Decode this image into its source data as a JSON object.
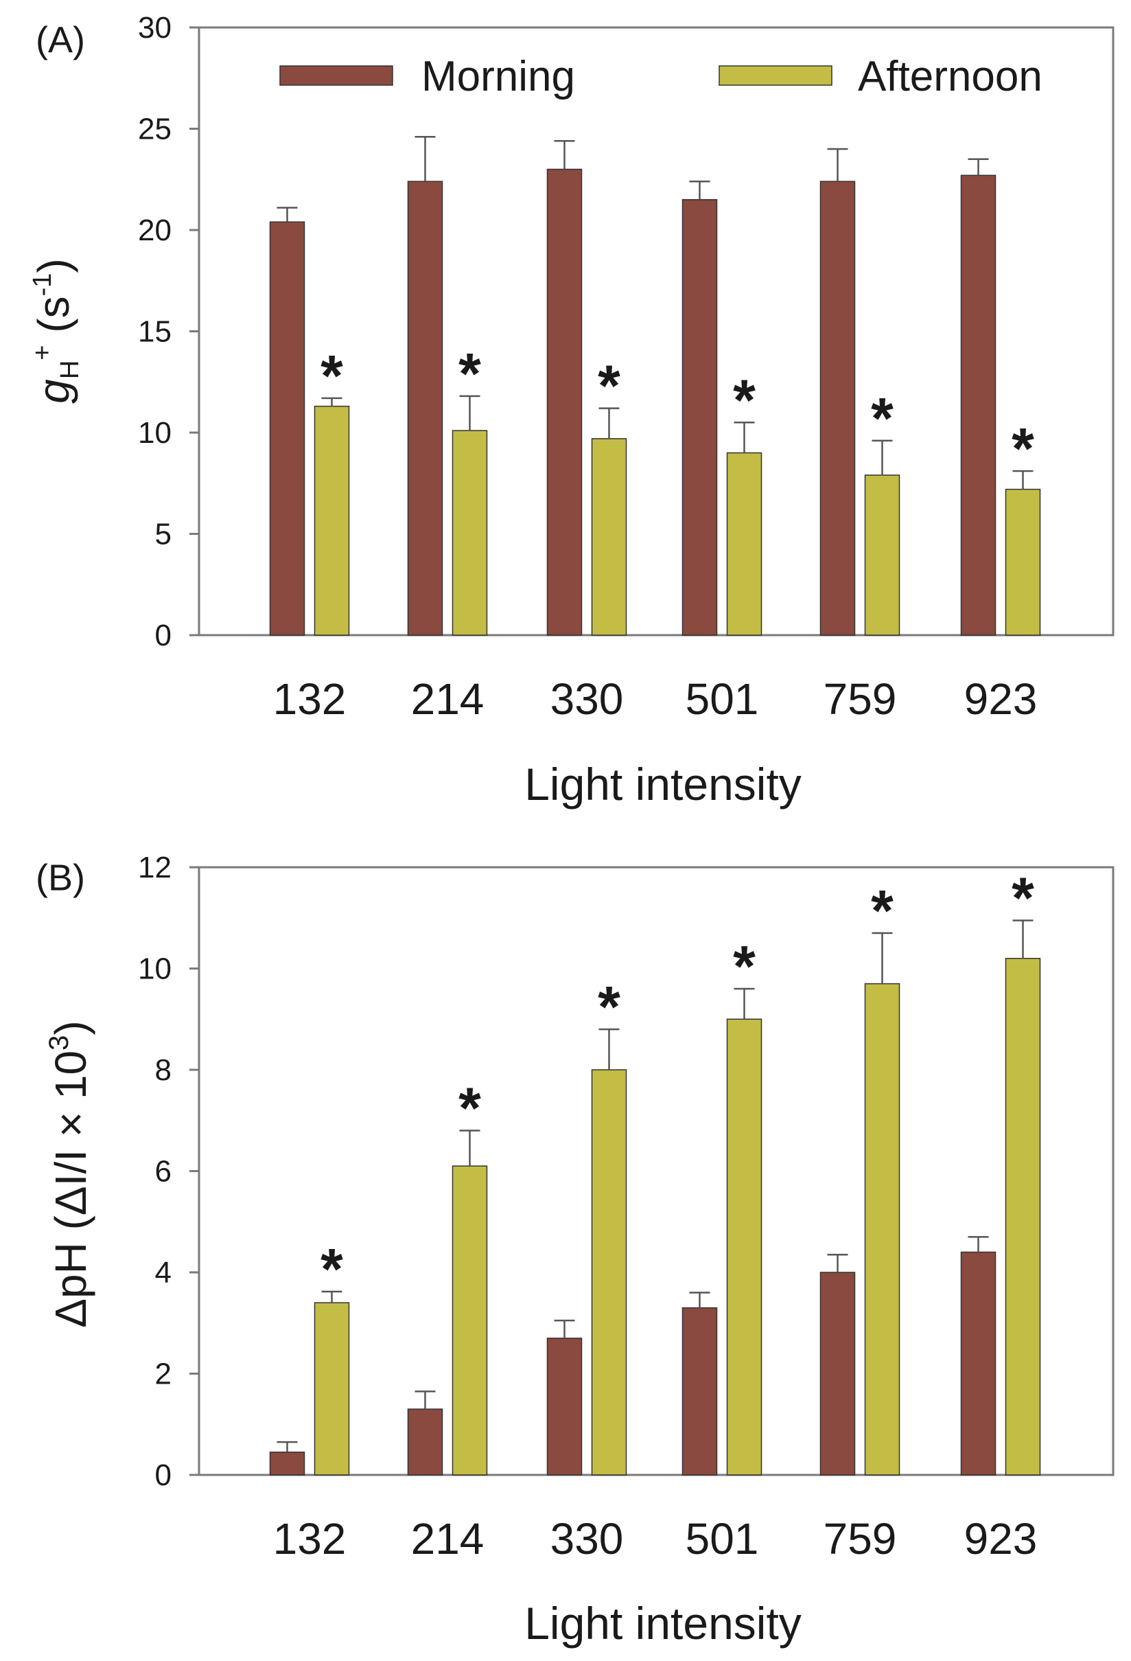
{
  "colors": {
    "morning": "#8b4a3f",
    "afternoon": "#c3bd46",
    "axis": "#7a7a7a",
    "text": "#1a1a1a"
  },
  "legend": {
    "morning_label": "Morning",
    "afternoon_label": "Afternoon"
  },
  "chart_data": [
    {
      "type": "bar",
      "panel_label": "(A)",
      "title": "",
      "xlabel": "Light intensity",
      "ylabel_parts": {
        "main": "g",
        "sub": "H",
        "sup": "+",
        "rest": " (s",
        "unit_sup": "-1",
        "close": ")"
      },
      "categories": [
        "132",
        "214",
        "330",
        "501",
        "759",
        "923"
      ],
      "ylim": [
        0,
        30
      ],
      "yticks": [
        "0",
        "5",
        "10",
        "15",
        "20",
        "25",
        "30"
      ],
      "legend_position": "top",
      "series": [
        {
          "name": "Morning",
          "values": [
            20.4,
            22.4,
            23.0,
            21.5,
            22.4,
            22.7
          ],
          "errors": [
            0.7,
            2.2,
            1.4,
            0.9,
            1.6,
            0.8
          ]
        },
        {
          "name": "Afternoon",
          "values": [
            11.3,
            10.1,
            9.7,
            9.0,
            7.9,
            7.2
          ],
          "errors": [
            0.4,
            1.7,
            1.5,
            1.5,
            1.7,
            0.9
          ],
          "significance": [
            "*",
            "*",
            "*",
            "*",
            "*",
            "*"
          ]
        }
      ]
    },
    {
      "type": "bar",
      "panel_label": "(B)",
      "title": "",
      "xlabel": "Light intensity",
      "ylabel_parts": {
        "main": "ΔpH (ΔI/I × 10",
        "sup": "3",
        "close": ")"
      },
      "categories": [
        "132",
        "214",
        "330",
        "501",
        "759",
        "923"
      ],
      "ylim": [
        0,
        12
      ],
      "yticks": [
        "0",
        "2",
        "4",
        "6",
        "8",
        "10",
        "12"
      ],
      "series": [
        {
          "name": "Morning",
          "values": [
            0.45,
            1.3,
            2.7,
            3.3,
            4.0,
            4.4
          ],
          "errors": [
            0.2,
            0.35,
            0.35,
            0.3,
            0.35,
            0.3
          ]
        },
        {
          "name": "Afternoon",
          "values": [
            3.4,
            6.1,
            8.0,
            9.0,
            9.7,
            10.2
          ],
          "errors": [
            0.22,
            0.7,
            0.8,
            0.6,
            1.0,
            0.75
          ],
          "significance": [
            "*",
            "*",
            "*",
            "*",
            "*",
            "*"
          ]
        }
      ]
    }
  ]
}
